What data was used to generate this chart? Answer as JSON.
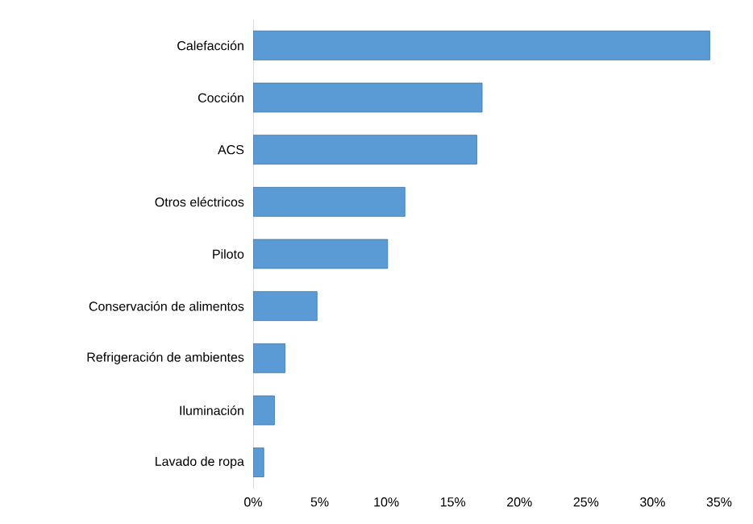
{
  "chart_data": {
    "type": "bar",
    "orientation": "horizontal",
    "categories": [
      "Calefacción",
      "Cocción",
      "ACS",
      "Otros eléctricos",
      "Piloto",
      "Conservación de alimentos",
      "Refrigeración de ambientes",
      "Iluminación",
      "Lavado de ropa"
    ],
    "values": [
      34.3,
      17.2,
      16.8,
      11.4,
      10.1,
      4.8,
      2.4,
      1.6,
      0.8
    ],
    "color": "#5b9bd5",
    "xlim": [
      0,
      35
    ],
    "xticks": [
      {
        "value": 0,
        "label": "0%"
      },
      {
        "value": 5,
        "label": "5%"
      },
      {
        "value": 10,
        "label": "10%"
      },
      {
        "value": 15,
        "label": "15%"
      },
      {
        "value": 20,
        "label": "20%"
      },
      {
        "value": 25,
        "label": "25%"
      },
      {
        "value": 30,
        "label": "30%"
      },
      {
        "value": 35,
        "label": "35%"
      }
    ]
  }
}
